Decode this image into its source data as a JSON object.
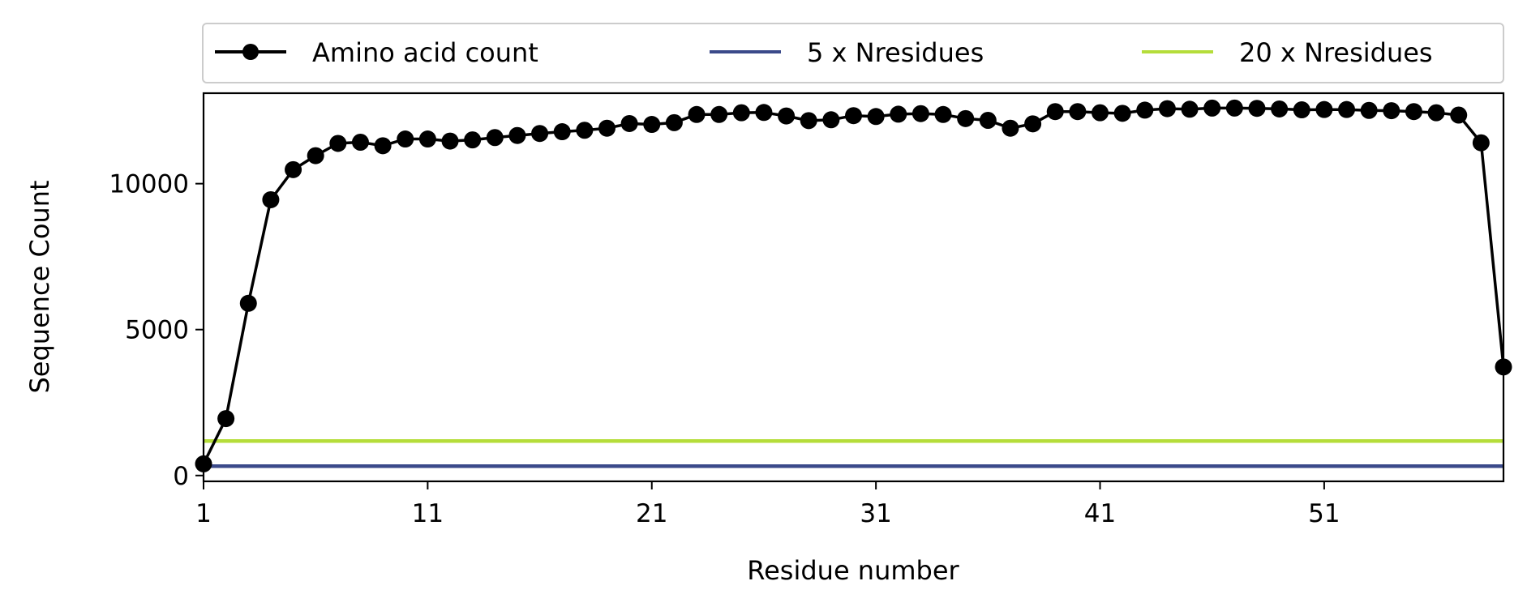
{
  "chart_data": {
    "type": "line",
    "xlabel": "Residue number",
    "ylabel": "Sequence Count",
    "xlim": [
      1,
      59
    ],
    "ylim": [
      -200,
      13100
    ],
    "x_ticks": [
      1,
      11,
      21,
      31,
      41,
      51
    ],
    "y_ticks": [
      0,
      5000,
      10000
    ],
    "grid": false,
    "legend_placement": "top, above plot",
    "series": [
      {
        "name": "Amino acid count",
        "color": "#000000",
        "marker": "circle",
        "x": [
          1,
          2,
          3,
          4,
          5,
          6,
          7,
          8,
          9,
          10,
          11,
          12,
          13,
          14,
          15,
          16,
          17,
          18,
          19,
          20,
          21,
          22,
          23,
          24,
          25,
          26,
          27,
          28,
          29,
          30,
          31,
          32,
          33,
          34,
          35,
          36,
          37,
          38,
          39,
          40,
          41,
          42,
          43,
          44,
          45,
          46,
          47,
          48,
          49,
          50,
          51,
          52,
          53,
          54,
          55,
          56,
          57,
          58,
          59
        ],
        "values": [
          400,
          1950,
          5900,
          9450,
          10480,
          10960,
          11380,
          11420,
          11300,
          11530,
          11530,
          11460,
          11500,
          11580,
          11650,
          11720,
          11780,
          11830,
          11900,
          12060,
          12030,
          12090,
          12370,
          12370,
          12430,
          12440,
          12320,
          12160,
          12190,
          12330,
          12300,
          12380,
          12400,
          12370,
          12230,
          12170,
          11900,
          12050,
          12470,
          12470,
          12430,
          12410,
          12520,
          12570,
          12550,
          12590,
          12590,
          12580,
          12560,
          12530,
          12540,
          12540,
          12510,
          12500,
          12470,
          12430,
          12350,
          11400,
          3720
        ]
      },
      {
        "name": "5 x Nresidues",
        "color": "#3b4a8a",
        "type": "hline",
        "value": 320
      },
      {
        "name": "20 x Nresidues",
        "color": "#b5dd3a",
        "type": "hline",
        "value": 1180
      }
    ]
  }
}
